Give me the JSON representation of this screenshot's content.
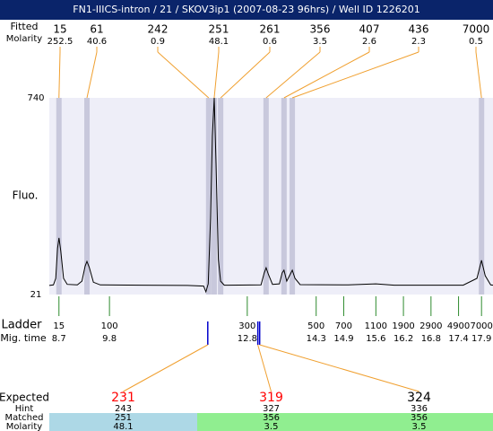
{
  "title": "FN1-IIICS-intron / 21 / SKOV3ip1 (2007-08-23 96hrs) / Well ID 1226201",
  "chart_data": {
    "type": "electropherogram",
    "y_label": "Fluo.",
    "ylim": [
      21,
      740
    ],
    "yticks": [
      21,
      740
    ],
    "xlim": [
      8.49,
      18.15
    ],
    "band_color": "#c8c8dc",
    "link_color": "#f0a030",
    "peaks": {
      "size_label": "Fitted",
      "molarity_label": "Molarity",
      "mig_time": [
        8.7,
        9.31,
        11.96,
        12.08,
        12.22,
        13.21,
        13.6,
        13.78,
        17.9
      ],
      "size": [
        15,
        61,
        242,
        251,
        261,
        356,
        407,
        436,
        7000
      ],
      "molarity": [
        252.5,
        40.6,
        0.9,
        48.1,
        0.6,
        3.5,
        2.6,
        2.3,
        0.5
      ]
    },
    "trace": {
      "color": "#000000",
      "x": [
        8.49,
        8.58,
        8.63,
        8.67,
        8.7,
        8.74,
        8.8,
        8.88,
        9.1,
        9.2,
        9.27,
        9.31,
        9.36,
        9.45,
        9.6,
        10.5,
        11.5,
        11.85,
        11.9,
        11.95,
        12.0,
        12.04,
        12.08,
        12.12,
        12.17,
        12.22,
        12.3,
        13.1,
        13.17,
        13.21,
        13.26,
        13.35,
        13.5,
        13.56,
        13.6,
        13.66,
        13.72,
        13.78,
        13.84,
        13.95,
        15.0,
        15.6,
        16.0,
        17.5,
        17.8,
        17.9,
        17.98,
        18.1,
        18.15
      ],
      "y": [
        54,
        56,
        80,
        190,
        228,
        180,
        80,
        58,
        56,
        70,
        125,
        142,
        120,
        66,
        56,
        55,
        54,
        52,
        31,
        60,
        300,
        600,
        740,
        500,
        150,
        70,
        55,
        56,
        100,
        119,
        95,
        58,
        60,
        100,
        110,
        70,
        90,
        110,
        80,
        57,
        56,
        60,
        55,
        55,
        80,
        146,
        90,
        56,
        55
      ]
    },
    "ladder": {
      "label": "Ladder",
      "time_label": "Mig. time",
      "color": "#2e8b2e",
      "sizes": [
        15,
        100,
        300,
        500,
        700,
        1100,
        1900,
        2900,
        4900,
        7000
      ],
      "mig_time": [
        8.7,
        9.8,
        12.8,
        14.3,
        14.9,
        15.6,
        16.2,
        16.8,
        17.4,
        17.9
      ]
    },
    "expected": {
      "label": "Expected",
      "marker_color": "#0000cc",
      "values": [
        231,
        319,
        324
      ],
      "colors": [
        "#ff0000",
        "#ff0000",
        "#000000"
      ],
      "mig_time": [
        11.94,
        13.03,
        13.07
      ],
      "hint_label": "Hint",
      "hint": [
        243,
        327,
        336
      ],
      "matched_label": "Matched",
      "matched": [
        251,
        356,
        356
      ],
      "molarity_label": "Molarity",
      "molarity": [
        48.1,
        3.5,
        3.5
      ],
      "row_colors": [
        "#add8e6",
        "#90ee90",
        "#90ee90"
      ]
    }
  }
}
